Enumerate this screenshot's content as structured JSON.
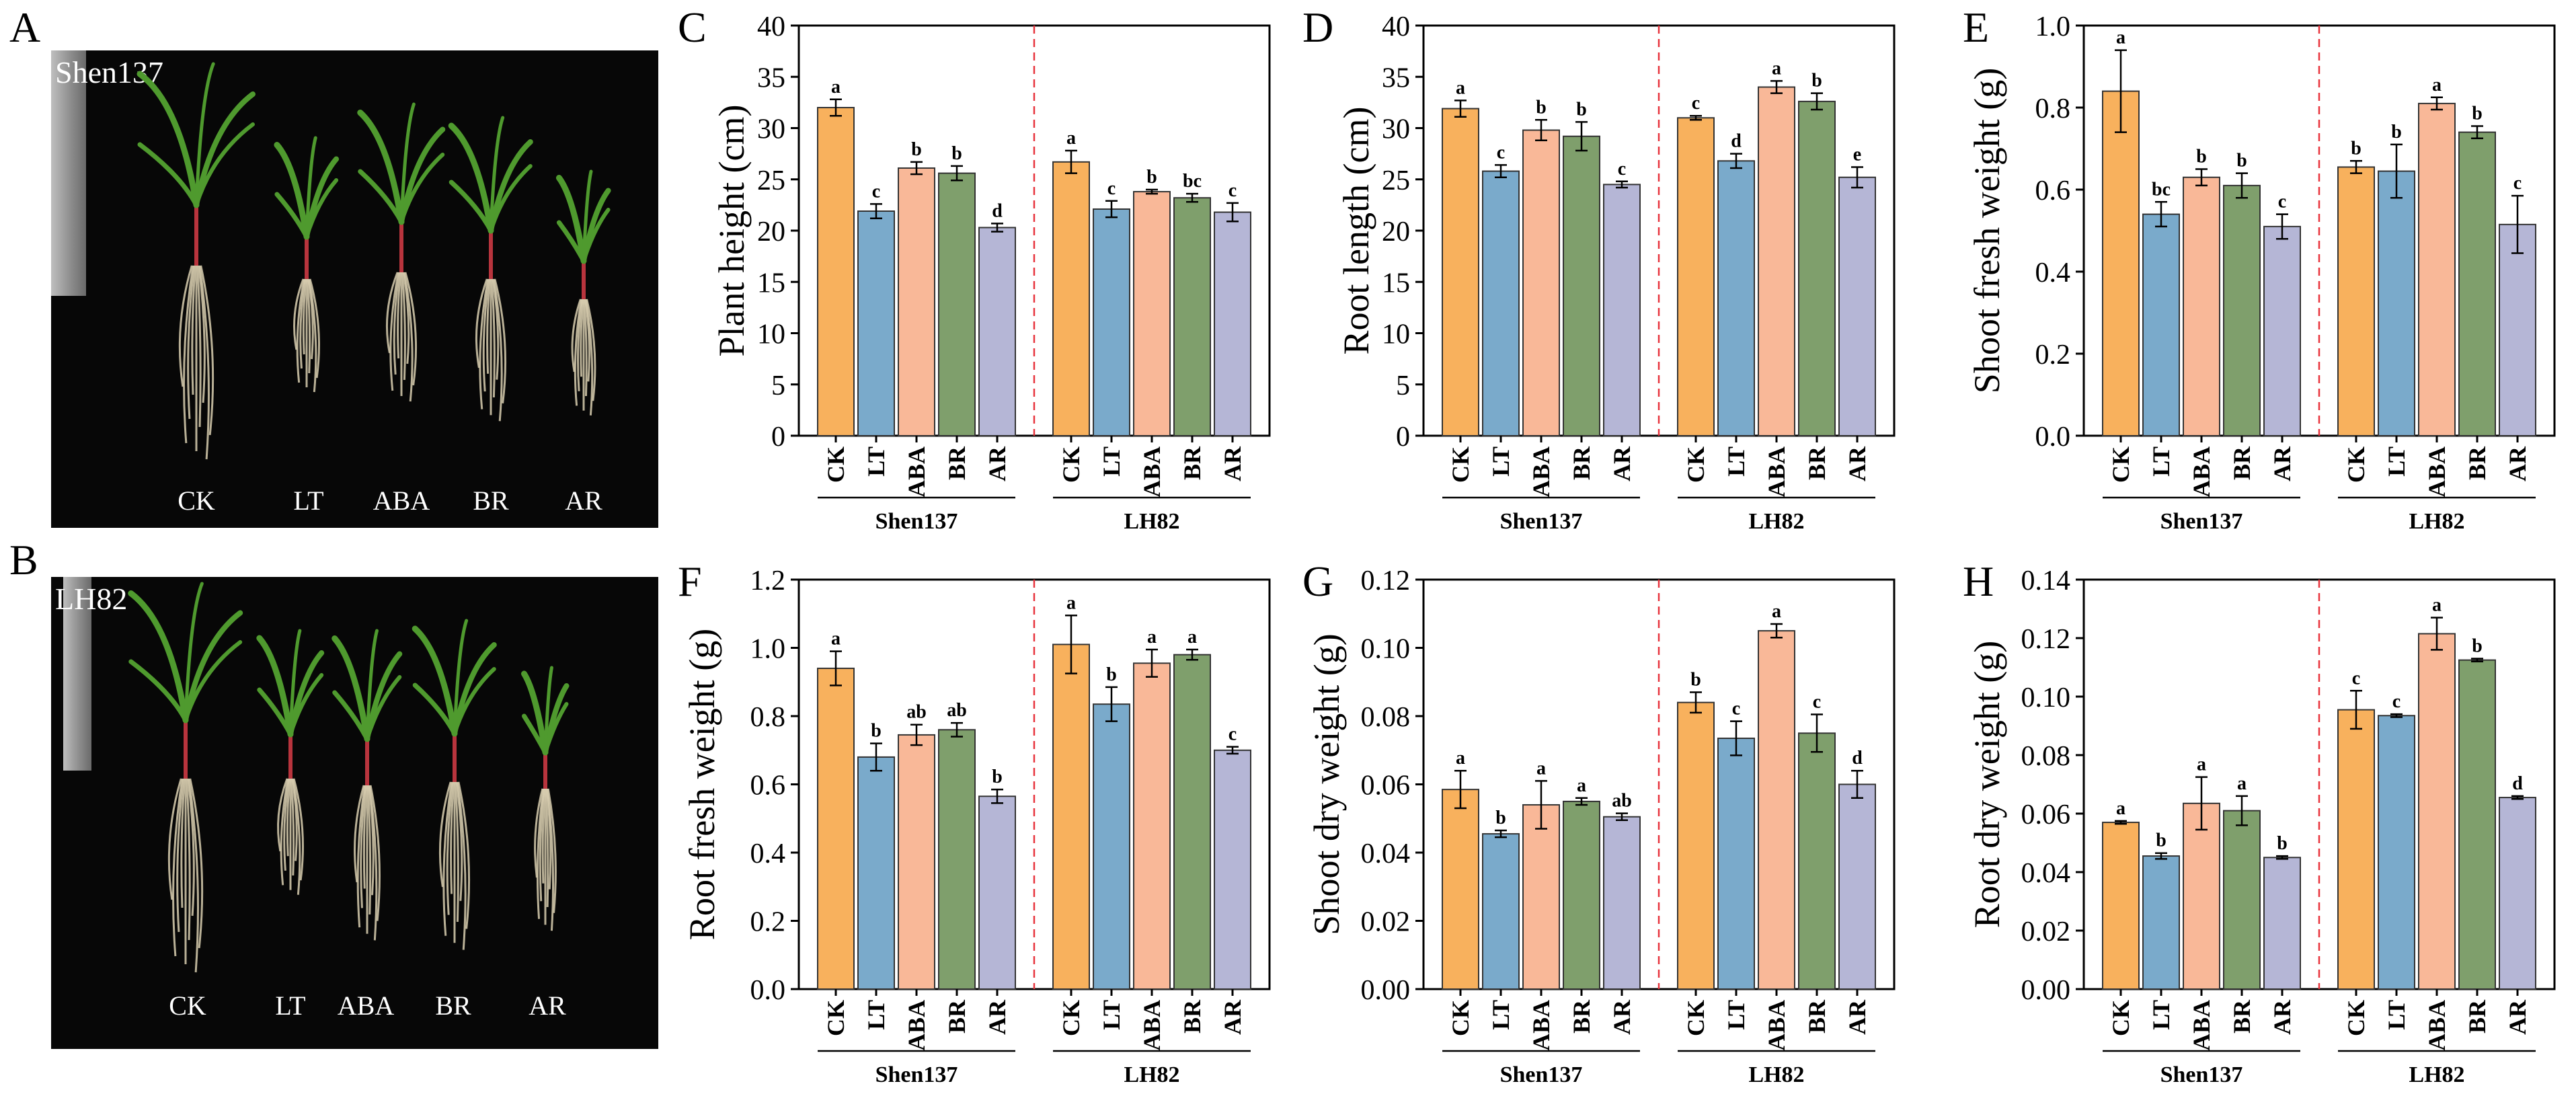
{
  "colors": {
    "treatments": {
      "CK": "#f8b15d",
      "LT": "#7aaacb",
      "ABA": "#f9b898",
      "BR": "#7f9f6c",
      "AR": "#b5b6d6"
    },
    "divider": "#e8343d",
    "photo_background": "#070707"
  },
  "photos": [
    {
      "panel": "A",
      "cultivar": "Shen137",
      "treatments": [
        "CK",
        "LT",
        "ABA",
        "BR",
        "AR"
      ]
    },
    {
      "panel": "B",
      "cultivar": "LH82",
      "treatments": [
        "CK",
        "LT",
        "ABA",
        "BR",
        "AR"
      ]
    }
  ],
  "chart_data": [
    {
      "panel": "C",
      "type": "bar",
      "ylabel": "Plant height (cm)",
      "ylim": [
        0,
        40
      ],
      "yticks": [
        "0",
        "5",
        "10",
        "15",
        "20",
        "25",
        "30",
        "35",
        "40"
      ],
      "groups": [
        {
          "name": "Shen137",
          "categories": [
            "CK",
            "LT",
            "ABA",
            "BR",
            "AR"
          ],
          "values": [
            32.0,
            21.9,
            26.1,
            25.6,
            20.3
          ],
          "errors": [
            0.8,
            0.7,
            0.6,
            0.7,
            0.4
          ],
          "letters": [
            "a",
            "c",
            "b",
            "b",
            "d"
          ]
        },
        {
          "name": "LH82",
          "categories": [
            "CK",
            "LT",
            "ABA",
            "BR",
            "AR"
          ],
          "values": [
            26.7,
            22.1,
            23.8,
            23.2,
            21.8
          ],
          "errors": [
            1.1,
            0.8,
            0.2,
            0.4,
            0.9
          ],
          "letters": [
            "a",
            "c",
            "b",
            "bc",
            "c"
          ]
        }
      ]
    },
    {
      "panel": "D",
      "type": "bar",
      "ylabel": "Root length (cm)",
      "ylim": [
        0,
        40
      ],
      "yticks": [
        "0",
        "5",
        "10",
        "15",
        "20",
        "25",
        "30",
        "35",
        "40"
      ],
      "groups": [
        {
          "name": "Shen137",
          "categories": [
            "CK",
            "LT",
            "ABA",
            "BR",
            "AR"
          ],
          "values": [
            31.9,
            25.8,
            29.8,
            29.2,
            24.5
          ],
          "errors": [
            0.8,
            0.6,
            1.0,
            1.4,
            0.3
          ],
          "letters": [
            "a",
            "c",
            "b",
            "b",
            "c"
          ]
        },
        {
          "name": "LH82",
          "categories": [
            "CK",
            "LT",
            "ABA",
            "BR",
            "AR"
          ],
          "values": [
            31.0,
            26.8,
            34.0,
            32.6,
            25.2
          ],
          "errors": [
            0.2,
            0.7,
            0.6,
            0.8,
            1.0
          ],
          "letters": [
            "c",
            "d",
            "a",
            "b",
            "e"
          ]
        }
      ]
    },
    {
      "panel": "E",
      "type": "bar",
      "ylabel": "Shoot fresh weight (g)",
      "ylim": [
        0,
        1.0
      ],
      "yticks": [
        "0.0",
        "0.2",
        "0.4",
        "0.6",
        "0.8",
        "1.0"
      ],
      "groups": [
        {
          "name": "Shen137",
          "categories": [
            "CK",
            "LT",
            "ABA",
            "BR",
            "AR"
          ],
          "values": [
            0.84,
            0.54,
            0.63,
            0.61,
            0.51
          ],
          "errors": [
            0.1,
            0.03,
            0.02,
            0.03,
            0.03
          ],
          "letters": [
            "a",
            "bc",
            "b",
            "b",
            "c"
          ]
        },
        {
          "name": "LH82",
          "categories": [
            "CK",
            "LT",
            "ABA",
            "BR",
            "AR"
          ],
          "values": [
            0.655,
            0.645,
            0.81,
            0.74,
            0.515
          ],
          "errors": [
            0.015,
            0.065,
            0.015,
            0.015,
            0.07
          ],
          "letters": [
            "b",
            "b",
            "a",
            "b",
            "c"
          ]
        }
      ]
    },
    {
      "panel": "F",
      "type": "bar",
      "ylabel": "Root fresh weight (g)",
      "ylim": [
        0,
        1.2
      ],
      "yticks": [
        "0.0",
        "0.2",
        "0.4",
        "0.6",
        "0.8",
        "1.0",
        "1.2"
      ],
      "groups": [
        {
          "name": "Shen137",
          "categories": [
            "CK",
            "LT",
            "ABA",
            "BR",
            "AR"
          ],
          "values": [
            0.94,
            0.68,
            0.745,
            0.76,
            0.565
          ],
          "errors": [
            0.05,
            0.04,
            0.03,
            0.02,
            0.02
          ],
          "letters": [
            "a",
            "b",
            "ab",
            "ab",
            "b"
          ]
        },
        {
          "name": "LH82",
          "categories": [
            "CK",
            "LT",
            "ABA",
            "BR",
            "AR"
          ],
          "values": [
            1.01,
            0.835,
            0.955,
            0.98,
            0.7
          ],
          "errors": [
            0.085,
            0.05,
            0.04,
            0.015,
            0.01
          ],
          "letters": [
            "a",
            "b",
            "a",
            "a",
            "c"
          ]
        }
      ]
    },
    {
      "panel": "G",
      "type": "bar",
      "ylabel": "Shoot dry weight (g)",
      "ylim": [
        0,
        0.12
      ],
      "yticks": [
        "0.00",
        "0.02",
        "0.04",
        "0.06",
        "0.08",
        "0.10",
        "0.12"
      ],
      "groups": [
        {
          "name": "Shen137",
          "categories": [
            "CK",
            "LT",
            "ABA",
            "BR",
            "AR"
          ],
          "values": [
            0.0585,
            0.0455,
            0.054,
            0.055,
            0.0505
          ],
          "errors": [
            0.0055,
            0.001,
            0.007,
            0.001,
            0.001
          ],
          "letters": [
            "a",
            "b",
            "a",
            "a",
            "ab"
          ]
        },
        {
          "name": "LH82",
          "categories": [
            "CK",
            "LT",
            "ABA",
            "BR",
            "AR"
          ],
          "values": [
            0.084,
            0.0735,
            0.105,
            0.075,
            0.06
          ],
          "errors": [
            0.003,
            0.005,
            0.002,
            0.0055,
            0.004
          ],
          "letters": [
            "b",
            "c",
            "a",
            "c",
            "d"
          ]
        }
      ]
    },
    {
      "panel": "H",
      "type": "bar",
      "ylabel": "Root dry weight (g)",
      "ylim": [
        0,
        0.14
      ],
      "yticks": [
        "0.00",
        "0.02",
        "0.04",
        "0.06",
        "0.08",
        "0.10",
        "0.12",
        "0.14"
      ],
      "groups": [
        {
          "name": "Shen137",
          "categories": [
            "CK",
            "LT",
            "ABA",
            "BR",
            "AR"
          ],
          "values": [
            0.057,
            0.0455,
            0.0635,
            0.061,
            0.045
          ],
          "errors": [
            0.0005,
            0.001,
            0.009,
            0.005,
            0.0005
          ],
          "letters": [
            "a",
            "b",
            "a",
            "a",
            "b"
          ]
        },
        {
          "name": "LH82",
          "categories": [
            "CK",
            "LT",
            "ABA",
            "BR",
            "AR"
          ],
          "values": [
            0.0955,
            0.0935,
            0.1215,
            0.1125,
            0.0655
          ],
          "errors": [
            0.0065,
            0.0005,
            0.0055,
            0.0005,
            0.0005
          ],
          "letters": [
            "c",
            "c",
            "a",
            "b",
            "d"
          ]
        }
      ]
    }
  ]
}
